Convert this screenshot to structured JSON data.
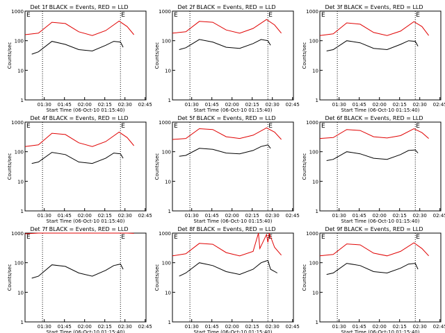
{
  "figure": {
    "rows": 3,
    "cols": 3,
    "ylabel": "Counts/sec",
    "xlabel": "Start Time (06-Oct-10 01:15:40)",
    "y_ticks": [
      "1",
      "10",
      "100",
      "1000"
    ],
    "x_ticks": [
      "01:30",
      "01:45",
      "02:00",
      "02:15",
      "02:30",
      "02:45"
    ],
    "marker_label": "E",
    "colors": {
      "events": "#000000",
      "lld": "#e00000",
      "axes": "#000000"
    }
  },
  "chart_data": [
    {
      "type": "line",
      "title": "Det 1f BLACK = Events, RED = LLD",
      "x_unit": "minutes after 01:15:40",
      "ylog": true,
      "ylim": [
        1,
        1000
      ],
      "markers": [
        13,
        71
      ],
      "series": [
        {
          "name": "Events",
          "x": [
            5,
            10,
            20,
            30,
            40,
            50,
            60,
            66,
            71,
            73
          ],
          "values": [
            35,
            42,
            95,
            75,
            50,
            45,
            70,
            95,
            90,
            60
          ]
        },
        {
          "name": "LLD",
          "x": [
            0,
            10,
            20,
            30,
            40,
            50,
            60,
            70,
            76,
            81
          ],
          "values": [
            160,
            180,
            420,
            380,
            200,
            150,
            220,
            460,
            300,
            160
          ]
        }
      ]
    },
    {
      "type": "line",
      "title": "Det 2f BLACK = Events, RED = LLD",
      "x_unit": "minutes after 01:15:40",
      "ylog": true,
      "ylim": [
        1,
        1000
      ],
      "markers": [
        13,
        71
      ],
      "series": [
        {
          "name": "Events",
          "x": [
            5,
            10,
            20,
            30,
            40,
            50,
            60,
            66,
            71,
            73
          ],
          "values": [
            50,
            58,
            110,
            90,
            60,
            55,
            80,
            110,
            100,
            70
          ]
        },
        {
          "name": "LLD",
          "x": [
            0,
            10,
            20,
            30,
            40,
            50,
            60,
            70,
            76,
            81
          ],
          "values": [
            180,
            200,
            450,
            420,
            230,
            180,
            260,
            520,
            340,
            180
          ]
        }
      ]
    },
    {
      "type": "line",
      "title": "Det 3f BLACK = Events, RED = LLD",
      "x_unit": "minutes after 01:15:40",
      "ylog": true,
      "ylim": [
        1,
        1000
      ],
      "markers": [
        13,
        71
      ],
      "series": [
        {
          "name": "Events",
          "x": [
            5,
            10,
            20,
            30,
            40,
            50,
            60,
            66,
            71,
            73
          ],
          "values": [
            45,
            50,
            100,
            85,
            55,
            50,
            75,
            100,
            95,
            65
          ]
        },
        {
          "name": "LLD",
          "x": [
            0,
            10,
            20,
            30,
            40,
            50,
            60,
            70,
            76,
            81
          ],
          "values": [
            150,
            170,
            400,
            360,
            190,
            150,
            210,
            440,
            300,
            150
          ]
        }
      ]
    },
    {
      "type": "line",
      "title": "Det 4f BLACK = Events, RED = LLD",
      "x_unit": "minutes after 01:15:40",
      "ylog": true,
      "ylim": [
        1,
        1000
      ],
      "markers": [
        13,
        71
      ],
      "series": [
        {
          "name": "Events",
          "x": [
            5,
            10,
            20,
            30,
            40,
            50,
            60,
            66,
            71,
            73
          ],
          "values": [
            40,
            45,
            95,
            80,
            45,
            40,
            60,
            90,
            85,
            60
          ]
        },
        {
          "name": "LLD",
          "x": [
            0,
            10,
            20,
            30,
            40,
            50,
            60,
            70,
            76,
            81
          ],
          "values": [
            150,
            170,
            420,
            380,
            200,
            150,
            220,
            460,
            300,
            160
          ]
        }
      ]
    },
    {
      "type": "line",
      "title": "Det 5f BLACK = Events, RED = LLD",
      "x_unit": "minutes after 01:15:40",
      "ylog": true,
      "ylim": [
        1,
        1000
      ],
      "markers": [
        13,
        71
      ],
      "series": [
        {
          "name": "Events",
          "x": [
            5,
            10,
            20,
            30,
            40,
            50,
            60,
            66,
            71,
            73
          ],
          "values": [
            70,
            75,
            130,
            120,
            90,
            85,
            110,
            150,
            170,
            130
          ]
        },
        {
          "name": "LLD",
          "x": [
            0,
            10,
            20,
            30,
            40,
            50,
            60,
            70,
            76,
            81
          ],
          "values": [
            260,
            280,
            600,
            560,
            320,
            280,
            360,
            640,
            460,
            260
          ]
        }
      ]
    },
    {
      "type": "line",
      "title": "Det 6f BLACK = Events, RED = LLD",
      "x_unit": "minutes after 01:15:40",
      "ylog": true,
      "ylim": [
        1,
        1000
      ],
      "markers": [
        13,
        71
      ],
      "series": [
        {
          "name": "Events",
          "x": [
            5,
            10,
            20,
            30,
            40,
            50,
            60,
            66,
            71,
            73
          ],
          "values": [
            50,
            55,
            100,
            85,
            60,
            55,
            80,
            110,
            115,
            90
          ]
        },
        {
          "name": "LLD",
          "x": [
            0,
            10,
            20,
            30,
            40,
            50,
            60,
            70,
            76,
            81
          ],
          "values": [
            280,
            300,
            560,
            520,
            320,
            290,
            350,
            600,
            440,
            280
          ]
        }
      ]
    },
    {
      "type": "line",
      "title": "Det 7f BLACK = Events, RED = LLD",
      "x_unit": "minutes after 01:15:40",
      "ylog": true,
      "ylim": [
        1,
        1000
      ],
      "markers": [
        13,
        71
      ],
      "series": [
        {
          "name": "Events",
          "x": [
            5,
            10,
            20,
            30,
            40,
            50,
            60,
            66,
            71,
            73
          ],
          "values": [
            30,
            35,
            85,
            75,
            45,
            35,
            55,
            80,
            90,
            60
          ]
        },
        {
          "name": "LLD",
          "x": [
            0,
            10,
            20,
            30,
            40,
            50,
            60,
            70,
            76,
            81
          ],
          "values": [
            950,
            1000,
            1000,
            1000,
            1000,
            1000,
            1000,
            1000,
            1000,
            980
          ]
        }
      ]
    },
    {
      "type": "line",
      "title": "Det 8f BLACK = Events, RED = LLD",
      "x_unit": "minutes after 01:15:40",
      "ylog": true,
      "ylim": [
        1,
        1000
      ],
      "markers": [
        13,
        71
      ],
      "series": [
        {
          "name": "Events",
          "x": [
            5,
            10,
            20,
            30,
            40,
            50,
            60,
            66,
            71,
            73,
            78
          ],
          "values": [
            35,
            45,
            100,
            80,
            50,
            40,
            60,
            100,
            120,
            60,
            45
          ]
        },
        {
          "name": "LLD",
          "x": [
            0,
            10,
            20,
            30,
            40,
            50,
            60,
            64,
            65,
            70,
            71,
            72,
            76,
            81
          ],
          "values": [
            170,
            200,
            450,
            420,
            220,
            170,
            240,
            1000,
            300,
            900,
            480,
            1000,
            330,
            180
          ]
        }
      ]
    },
    {
      "type": "line",
      "title": "Det 9f BLACK = Events, RED = LLD",
      "x_unit": "minutes after 01:15:40",
      "ylog": true,
      "ylim": [
        1,
        1000
      ],
      "markers": [
        13,
        71
      ],
      "series": [
        {
          "name": "Events",
          "x": [
            5,
            10,
            20,
            30,
            40,
            50,
            60,
            66,
            71,
            73
          ],
          "values": [
            40,
            45,
            95,
            80,
            50,
            45,
            65,
            90,
            95,
            60
          ]
        },
        {
          "name": "LLD",
          "x": [
            0,
            10,
            20,
            30,
            40,
            50,
            60,
            70,
            76,
            81
          ],
          "values": [
            170,
            190,
            430,
            400,
            210,
            170,
            240,
            470,
            300,
            170
          ]
        }
      ]
    }
  ]
}
